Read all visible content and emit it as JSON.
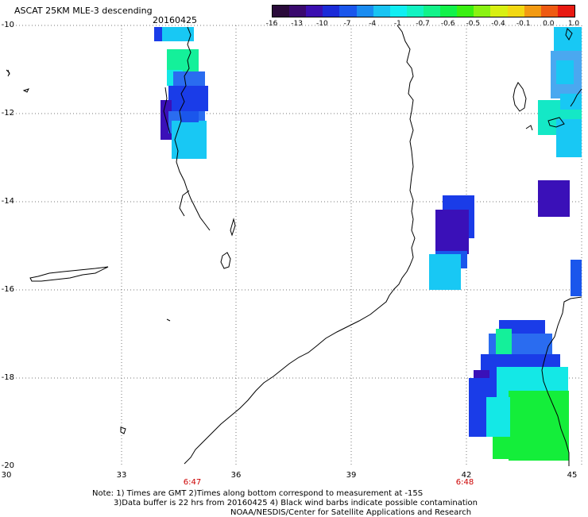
{
  "header": {
    "title": "ASCAT 25KM MLE-3 descending",
    "date": "20160425"
  },
  "colorbar": {
    "colors": [
      "#2a0b3a",
      "#3a0a6e",
      "#3b0fb0",
      "#1b2bd8",
      "#1a56ec",
      "#1a8cf0",
      "#19c4f2",
      "#10eef2",
      "#12f3c2",
      "#12f38a",
      "#12f24a",
      "#3af012",
      "#8af212",
      "#d8f012",
      "#f2d812",
      "#f29a12",
      "#ee5a12",
      "#e81a12"
    ],
    "ticks": [
      "-16",
      "-13",
      "-10",
      "-7",
      "-4",
      "-1",
      "-0.7",
      "-0.6",
      "-0.5",
      "-0.4",
      "-0.1",
      "0.0",
      "1.0"
    ]
  },
  "axes": {
    "lat_labels": [
      "-10",
      "-12",
      "-14",
      "-16",
      "-18",
      "-20"
    ],
    "lon_labels": [
      "30",
      "33",
      "36",
      "39",
      "42",
      "45"
    ]
  },
  "pass_times": [
    "6:47",
    "6:48"
  ],
  "notes": {
    "line1": "Note: 1) Times are GMT 2)Times along bottom correspond to measurement at -15S",
    "line2": "3)Data buffer is 22 hrs from 20160425 4) Black wind barbs indicate possible contamination",
    "line3": "NOAA/NESDIS/Center for Satellite Applications and Research"
  },
  "map": {
    "lon_range": [
      30,
      45
    ],
    "lat_range": [
      -20,
      -10
    ],
    "grid": true,
    "grid_style": "dotted",
    "colors": {
      "coast": "#000000",
      "grid": "#777777",
      "time_label": "#cc0000",
      "blue": "#1a3ce8",
      "mid_blue": "#2a6cf0",
      "cyan": "#18c8f4",
      "aqua": "#14e8e6",
      "green": "#14f09a",
      "lime": "#14ee3a",
      "purple": "#3a10b8"
    }
  }
}
